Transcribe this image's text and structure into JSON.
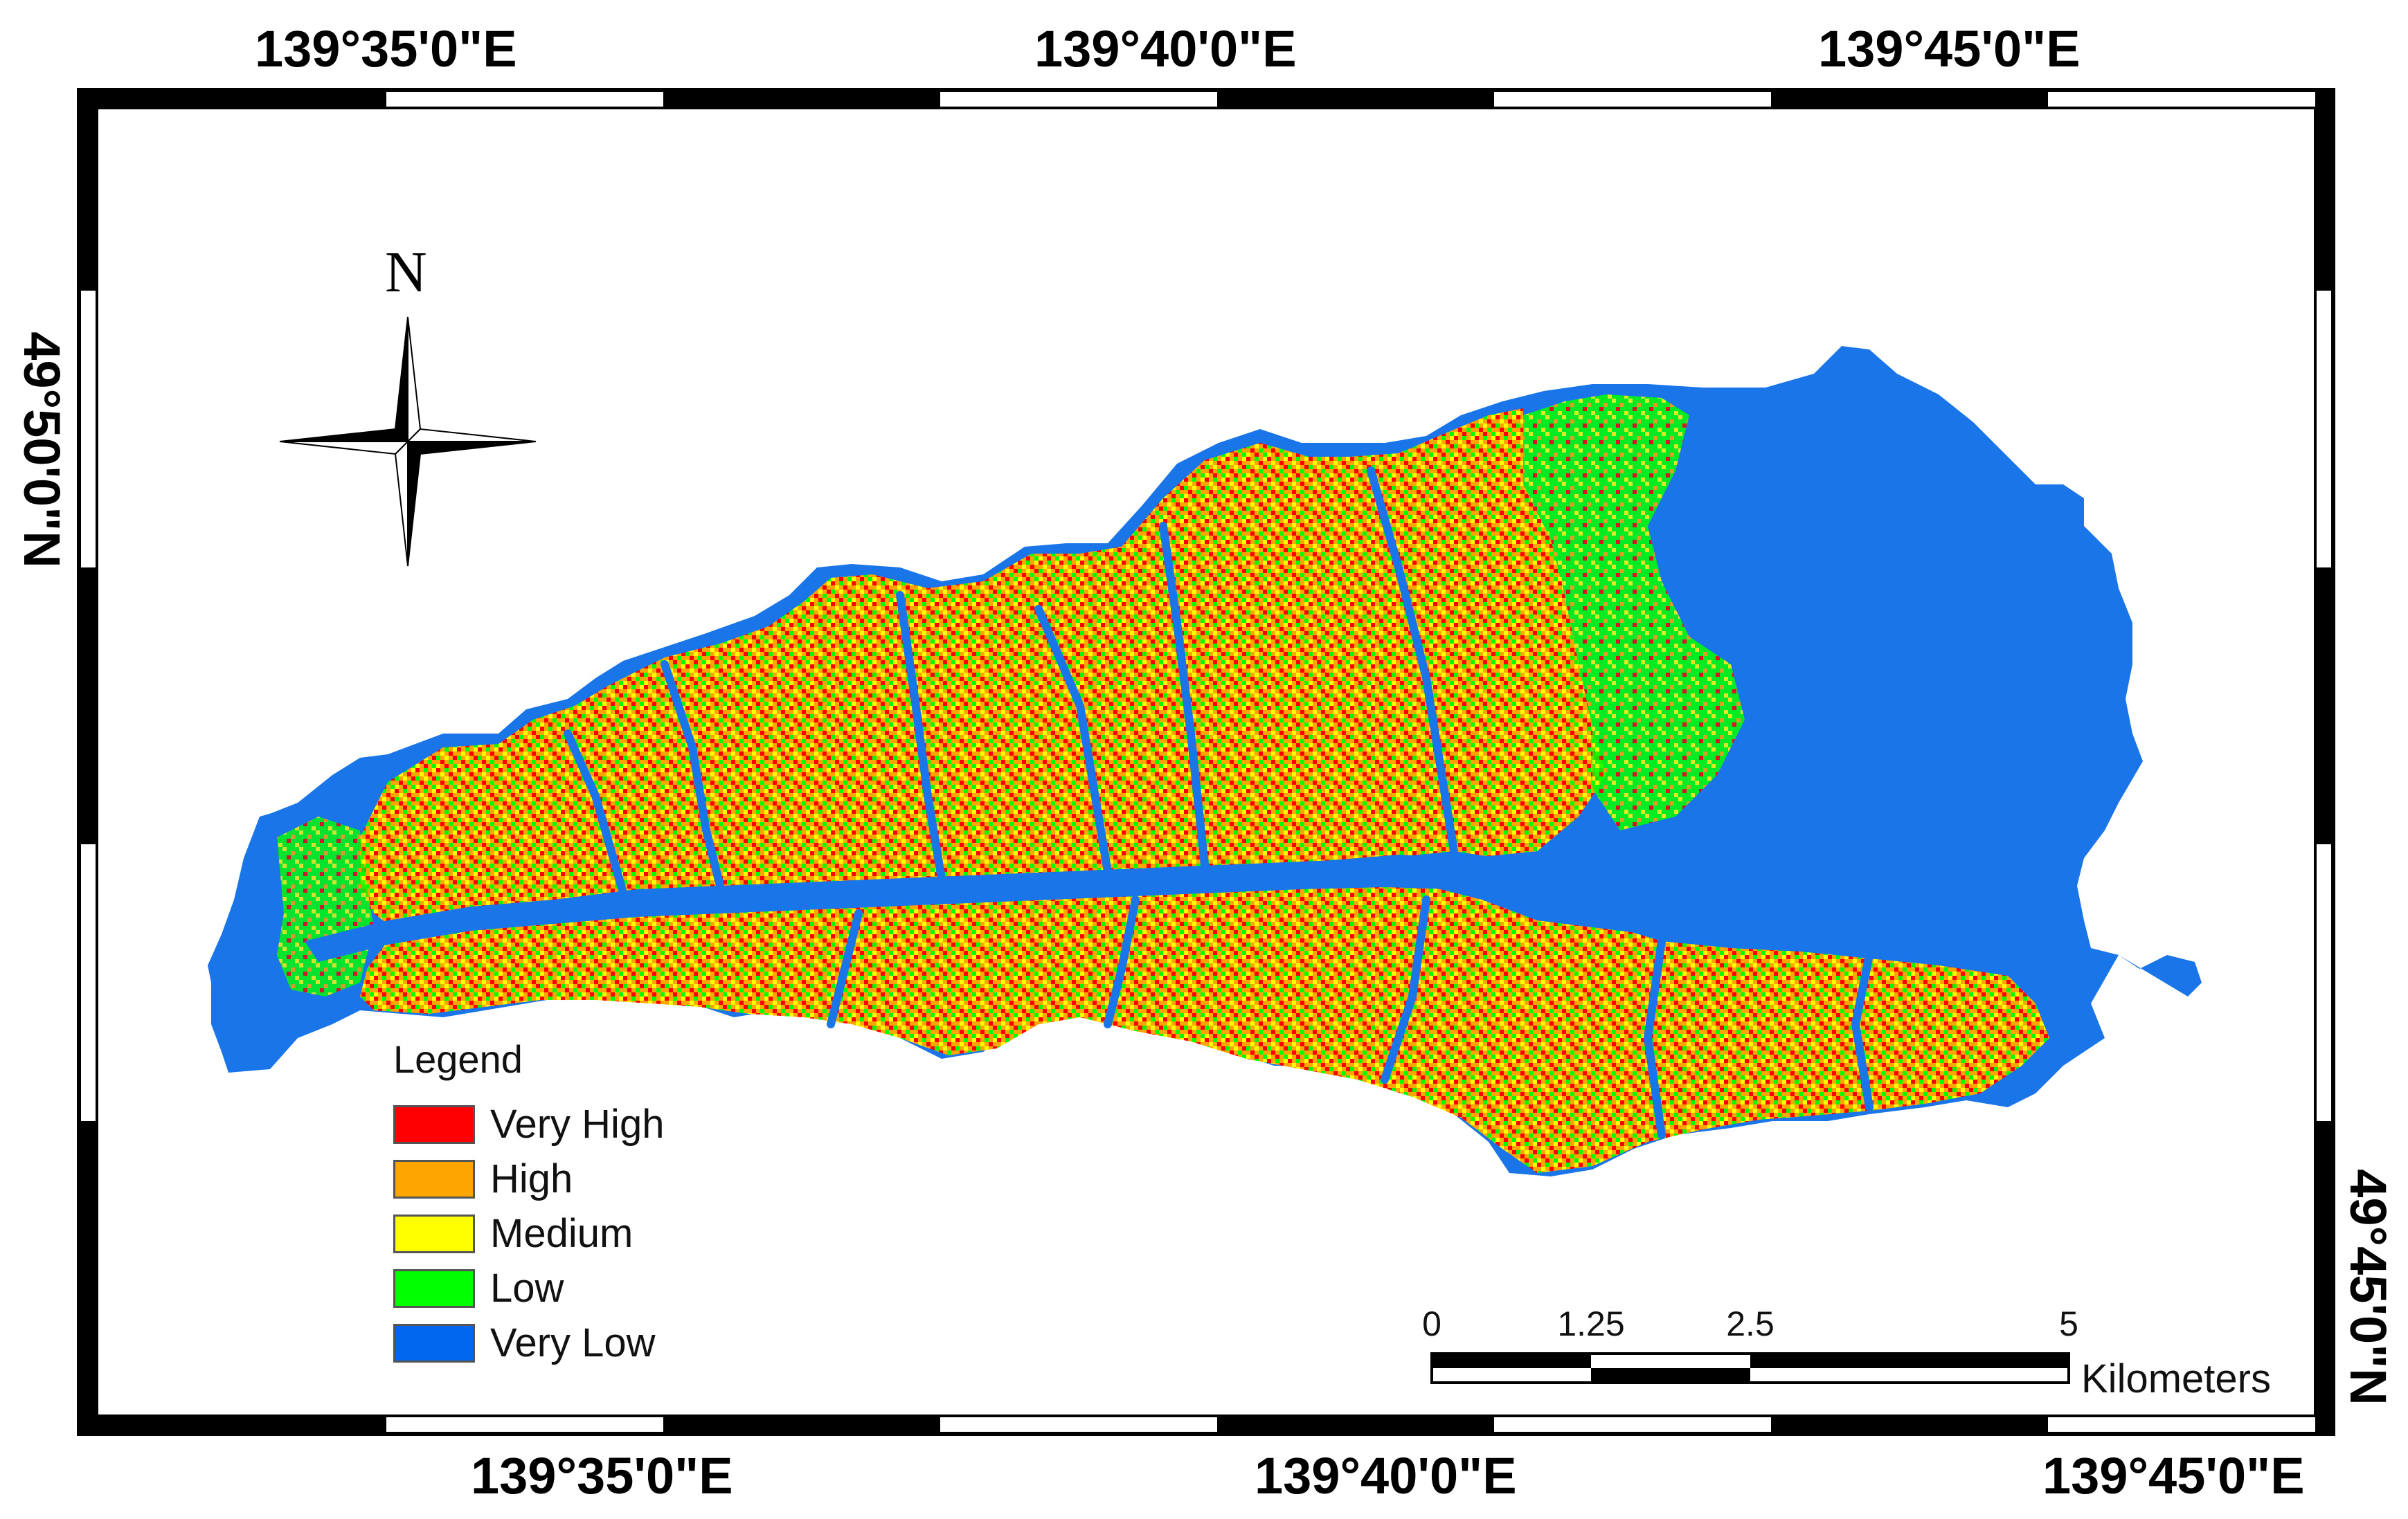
{
  "map": {
    "coordinates": {
      "top_lon": [
        "139°35'0\"E",
        "139°40'0\"E",
        "139°45'0\"E"
      ],
      "bottom_lon": [
        "139°35'0\"E",
        "139°40'0\"E",
        "139°45'0\"E"
      ],
      "left_lat": "49°50'0\"N",
      "right_lat": "49°45'0\"N"
    },
    "north_arrow": {
      "label": "N",
      "icon": "compass-rose-icon"
    },
    "legend": {
      "title": "Legend",
      "items": [
        {
          "label": "Very High",
          "color": "#ff0000"
        },
        {
          "label": "High",
          "color": "#ffa500"
        },
        {
          "label": "Medium",
          "color": "#ffff00"
        },
        {
          "label": "Low",
          "color": "#00ff00"
        },
        {
          "label": "Very Low",
          "color": "#0066ee"
        }
      ]
    },
    "scale_bar": {
      "ticks": [
        "0",
        "1.25",
        "2.5",
        "5"
      ],
      "unit": "Kilometers"
    },
    "colors": {
      "frame": "#000000",
      "background": "#ffffff",
      "very_low": "#1a75e8"
    }
  }
}
